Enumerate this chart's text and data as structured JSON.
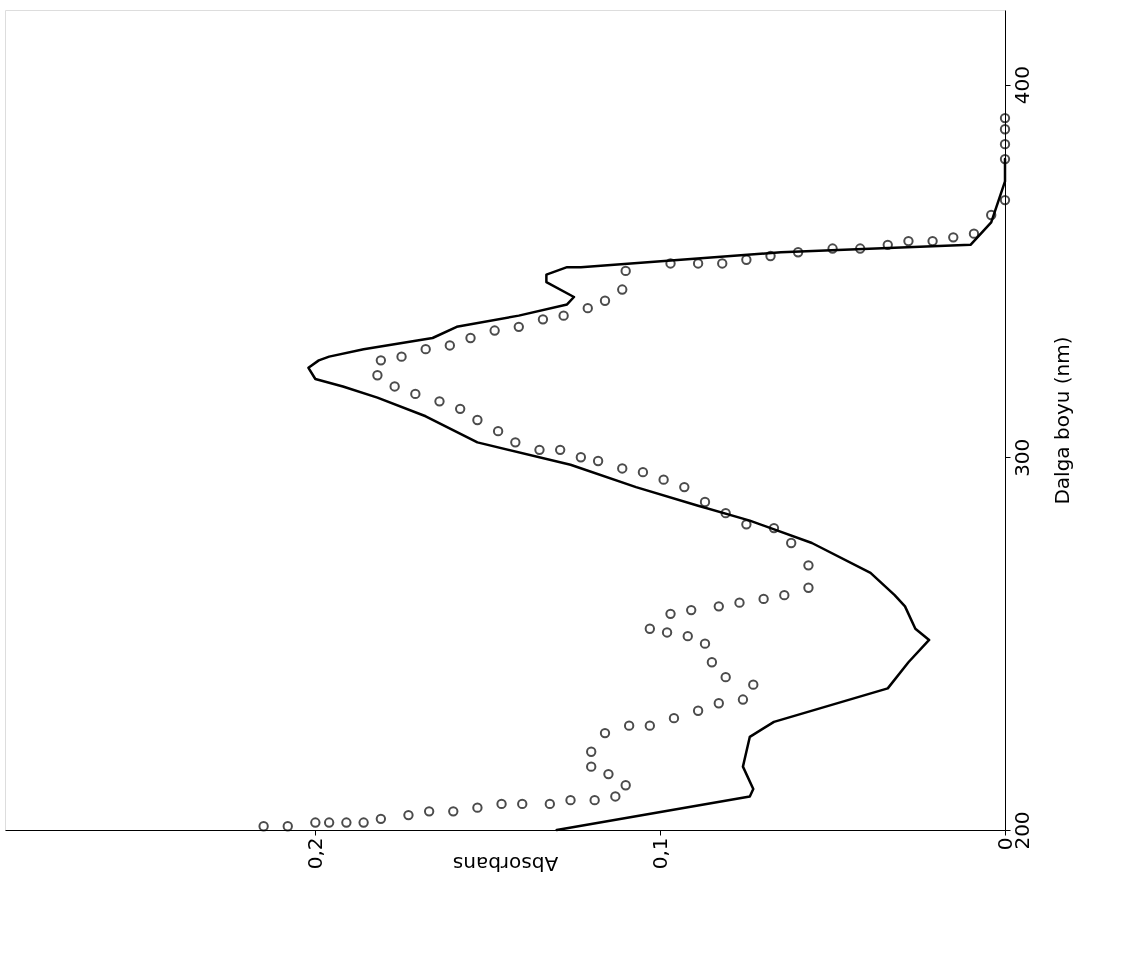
{
  "chart_data": {
    "type": "line",
    "xlabel": "Absorbans",
    "ylabel": "Dalga boyu (nm)",
    "xlim": [
      0.29,
      0
    ],
    "xticks": [
      {
        "value": 0,
        "label": "0"
      },
      {
        "value": 0.1,
        "label": "0,1"
      },
      {
        "value": 0.2,
        "label": "0,2"
      }
    ],
    "ylim": [
      200,
      420
    ],
    "yticks": [
      200,
      300,
      400
    ],
    "grid": false,
    "series": [
      {
        "color": "#000000",
        "line_style": "solid",
        "x": [
          0.13,
          0.074,
          0.073,
          0.076,
          0.074,
          0.067,
          0.034,
          0.028,
          0.022,
          0.026,
          0.029,
          0.032,
          0.039,
          0.056,
          0.074,
          0.089,
          0.107,
          0.126,
          0.153,
          0.168,
          0.182,
          0.192,
          0.2,
          0.202,
          0.199,
          0.196,
          0.186,
          0.166,
          0.159,
          0.141,
          0.127,
          0.125,
          0.133,
          0.133,
          0.127,
          0.123,
          0.094,
          0.065,
          0.01,
          0.004,
          0,
          0
        ],
        "values": [
          200,
          209,
          211,
          217,
          225,
          229,
          238,
          245,
          251,
          254,
          260,
          263,
          269,
          277,
          283,
          287,
          292,
          298,
          304,
          311,
          316,
          319,
          321,
          324,
          326,
          327,
          329,
          332,
          335,
          338,
          341,
          343,
          347,
          349,
          351,
          351,
          353,
          355,
          357,
          363,
          374,
          380
        ]
      },
      {
        "type": "scatter",
        "marker": "circle",
        "color": "#000000",
        "x": [
          0.215,
          0.208,
          0.2,
          0.196,
          0.191,
          0.186,
          0.181,
          0.173,
          0.167,
          0.16,
          0.153,
          0.146,
          0.14,
          0.132,
          0.126,
          0.119,
          0.113,
          0.11,
          0.115,
          0.12,
          0.12,
          0.116,
          0.109,
          0.103,
          0.096,
          0.089,
          0.083,
          0.076,
          0.073,
          0.081,
          0.085,
          0.087,
          0.092,
          0.098,
          0.103,
          0.097,
          0.091,
          0.083,
          0.077,
          0.07,
          0.064,
          0.057,
          0.057,
          0.062,
          0.067,
          0.075,
          0.081,
          0.087,
          0.093,
          0.099,
          0.105,
          0.111,
          0.118,
          0.123,
          0.129,
          0.135,
          0.142,
          0.147,
          0.153,
          0.158,
          0.164,
          0.171,
          0.177,
          0.182,
          0.181,
          0.175,
          0.168,
          0.161,
          0.155,
          0.148,
          0.141,
          0.134,
          0.128,
          0.121,
          0.116,
          0.111,
          0.11,
          0.097,
          0.089,
          0.082,
          0.075,
          0.068,
          0.06,
          0.05,
          0.042,
          0.034,
          0.028,
          0.021,
          0.015,
          0.009,
          0.004,
          0,
          0,
          0,
          0,
          0
        ],
        "values": [
          201,
          201,
          202,
          202,
          202,
          202,
          203,
          204,
          205,
          205,
          206,
          207,
          207,
          207,
          208,
          208,
          209,
          212,
          215,
          217,
          221,
          226,
          228,
          228,
          230,
          232,
          234,
          235,
          239,
          241,
          245,
          250,
          252,
          253,
          254,
          258,
          259,
          260,
          261,
          262,
          263,
          265,
          271,
          277,
          281,
          282,
          285,
          288,
          292,
          294,
          296,
          297,
          299,
          300,
          302,
          302,
          304,
          307,
          310,
          313,
          315,
          317,
          319,
          322,
          326,
          327,
          329,
          330,
          332,
          334,
          335,
          337,
          338,
          340,
          342,
          345,
          350,
          352,
          352,
          352,
          353,
          354,
          355,
          356,
          356,
          357,
          358,
          358,
          359,
          360,
          365,
          369,
          380,
          384,
          388,
          391
        ]
      }
    ]
  }
}
